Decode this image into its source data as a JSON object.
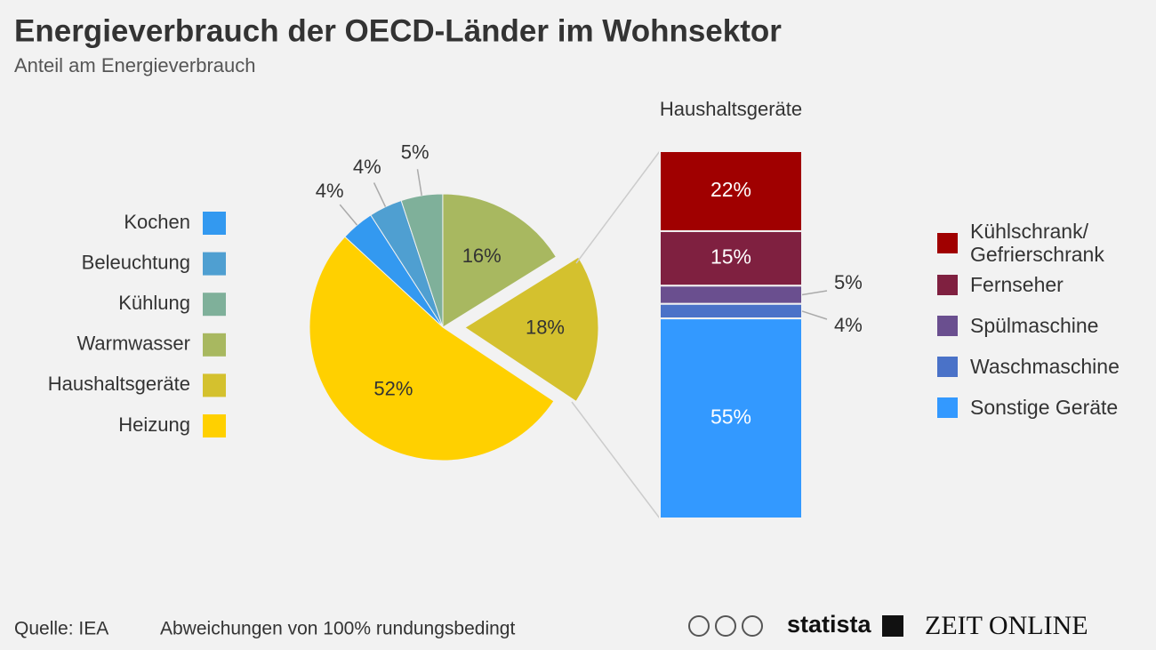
{
  "title": "Energieverbrauch der OECD-Länder im Wohnsektor",
  "subtitle": "Anteil am Energieverbrauch",
  "footer": {
    "source": "Quelle: IEA",
    "note": "Abweichungen von 100% rundungsbedingt",
    "logos": [
      "statista",
      "ZEIT ONLINE"
    ]
  },
  "chart_data": [
    {
      "type": "pie",
      "categories": [
        "Kochen",
        "Beleuchtung",
        "Kühlung",
        "Warmwasser",
        "Haushaltsgeräte",
        "Heizung"
      ],
      "values": [
        4,
        4,
        5,
        16,
        18,
        52
      ],
      "value_labels": [
        "4%",
        "4%",
        "5%",
        "16%",
        "18%",
        "52%"
      ],
      "colors": [
        "#3399f0",
        "#4f9fd1",
        "#7fb09a",
        "#a8b860",
        "#d4c12e",
        "#ffd000"
      ],
      "exploded_category": "Haushaltsgeräte"
    },
    {
      "type": "stacked_bar",
      "title": "Haushaltsgeräte",
      "series": [
        {
          "name": "Kühlschrank/ Gefrierschrank",
          "color": "#a00000",
          "values": [
            22
          ],
          "value_labels": [
            "22%"
          ]
        },
        {
          "name": "Fernseher",
          "color": "#7f2040",
          "values": [
            15
          ],
          "value_labels": [
            "15%"
          ]
        },
        {
          "name": "Spülmaschine",
          "color": "#6a4f8f",
          "values": [
            5
          ],
          "value_labels": [
            "5%"
          ]
        },
        {
          "name": "Waschmaschine",
          "color": "#4a72c8",
          "values": [
            4
          ],
          "value_labels": [
            "4%"
          ]
        },
        {
          "name": "Sonstige Geräte",
          "color": "#3399ff",
          "values": [
            55
          ],
          "value_labels": [
            "55%"
          ]
        }
      ]
    }
  ]
}
